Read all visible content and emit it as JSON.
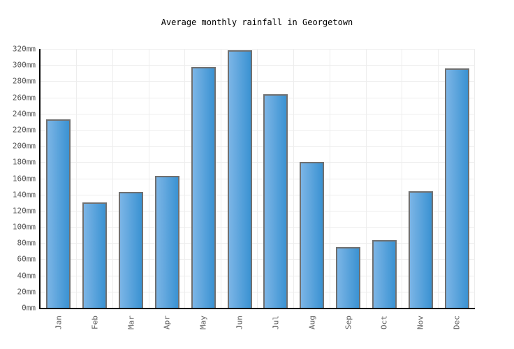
{
  "title": "Average monthly rainfall in Georgetown",
  "chart_data": {
    "type": "bar",
    "title": "Average monthly rainfall in Georgetown",
    "categories": [
      "Jan",
      "Feb",
      "Mar",
      "Apr",
      "May",
      "Jun",
      "Jul",
      "Aug",
      "Sep",
      "Oct",
      "Nov",
      "Dec"
    ],
    "values": [
      233,
      130,
      143,
      163,
      298,
      318,
      264,
      180,
      75,
      84,
      144,
      296
    ],
    "unit": "mm",
    "xlabel": "",
    "ylabel": "",
    "ylim": [
      0,
      320
    ],
    "ytick_step": 20,
    "ytick_labels": [
      "0mm",
      "20mm",
      "40mm",
      "60mm",
      "80mm",
      "100mm",
      "120mm",
      "140mm",
      "160mm",
      "180mm",
      "200mm",
      "220mm",
      "240mm",
      "260mm",
      "280mm",
      "300mm",
      "320mm"
    ],
    "grid": true,
    "legend": "none",
    "colors": {
      "bar_gradient_left": "#7cb5e6",
      "bar_gradient_right": "#3a92d2",
      "bar_border": "#707070",
      "grid_line": "#ededed",
      "axis_line": "#000000",
      "ytick_text": "#555555",
      "xtick_text": "#666666",
      "title_text": "#000000"
    }
  }
}
